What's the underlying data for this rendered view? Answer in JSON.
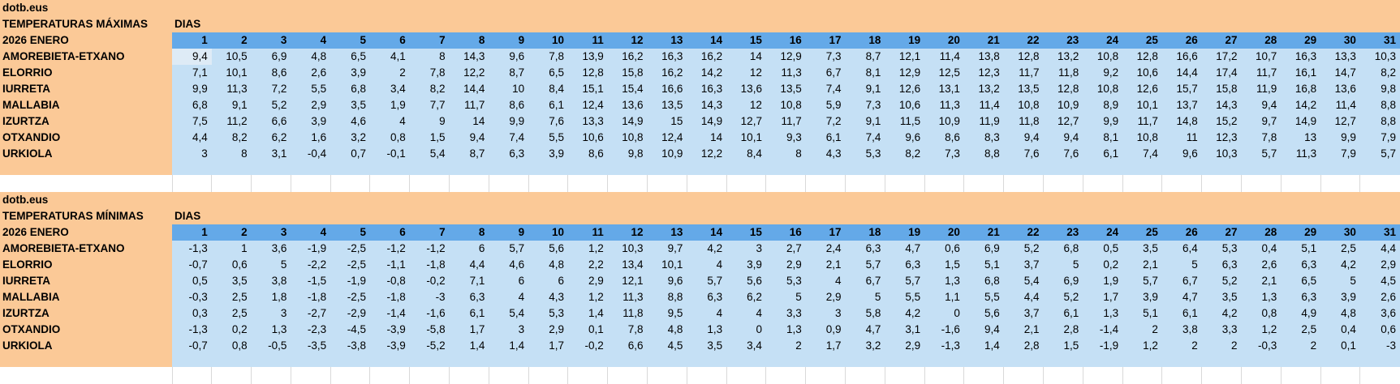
{
  "shared": {
    "site": "dotb.eus",
    "days_label": "DIAS",
    "month_label": "2026 ENERO"
  },
  "colors": {
    "peach": "#FBC997",
    "header-blue": "#64A9E8",
    "cell-blue": "#C5E0F5",
    "selected-blue": "#DEEBF6",
    "grid-gray": "#D9D9D9",
    "text": "#000000",
    "bg": "#FFFFFF"
  },
  "days": [
    "1",
    "2",
    "3",
    "4",
    "5",
    "6",
    "7",
    "8",
    "9",
    "10",
    "11",
    "12",
    "13",
    "14",
    "15",
    "16",
    "17",
    "18",
    "19",
    "20",
    "21",
    "22",
    "23",
    "24",
    "25",
    "26",
    "27",
    "28",
    "29",
    "30",
    "31"
  ],
  "selected_cell": {
    "table": 0,
    "row": 0,
    "col": 0
  },
  "tables": [
    {
      "title": "TEMPERATURAS MÁXIMAS",
      "rows": [
        {
          "station": "AMOREBIETA-ETXANO",
          "values": [
            "9,4",
            "10,5",
            "6,9",
            "4,8",
            "6,5",
            "4,1",
            "8",
            "14,3",
            "9,6",
            "7,8",
            "13,9",
            "16,2",
            "16,3",
            "16,2",
            "14",
            "12,9",
            "7,3",
            "8,7",
            "12,1",
            "11,4",
            "13,8",
            "12,8",
            "13,2",
            "10,8",
            "12,8",
            "16,6",
            "17,2",
            "10,7",
            "16,3",
            "13,3",
            "10,3"
          ]
        },
        {
          "station": "ELORRIO",
          "values": [
            "7,1",
            "10,1",
            "8,6",
            "2,6",
            "3,9",
            "2",
            "7,8",
            "12,2",
            "8,7",
            "6,5",
            "12,8",
            "15,8",
            "16,2",
            "14,2",
            "12",
            "11,3",
            "6,7",
            "8,1",
            "12,9",
            "12,5",
            "12,3",
            "11,7",
            "11,8",
            "9,2",
            "10,6",
            "14,4",
            "17,4",
            "11,7",
            "16,1",
            "14,7",
            "8,2"
          ]
        },
        {
          "station": "IURRETA",
          "values": [
            "9,9",
            "11,3",
            "7,2",
            "5,5",
            "6,8",
            "3,4",
            "8,2",
            "14,4",
            "10",
            "8,4",
            "15,1",
            "15,4",
            "16,6",
            "16,3",
            "13,6",
            "13,5",
            "7,4",
            "9,1",
            "12,6",
            "13,1",
            "13,2",
            "13,5",
            "12,8",
            "10,8",
            "12,6",
            "15,7",
            "15,8",
            "11,9",
            "16,8",
            "13,6",
            "9,8"
          ]
        },
        {
          "station": "MALLABIA",
          "values": [
            "6,8",
            "9,1",
            "5,2",
            "2,9",
            "3,5",
            "1,9",
            "7,7",
            "11,7",
            "8,6",
            "6,1",
            "12,4",
            "13,6",
            "13,5",
            "14,3",
            "12",
            "10,8",
            "5,9",
            "7,3",
            "10,6",
            "11,3",
            "11,4",
            "10,8",
            "10,9",
            "8,9",
            "10,1",
            "13,7",
            "14,3",
            "9,4",
            "14,2",
            "11,4",
            "8,8"
          ]
        },
        {
          "station": "IZURTZA",
          "values": [
            "7,5",
            "11,2",
            "6,6",
            "3,9",
            "4,6",
            "4",
            "9",
            "14",
            "9,9",
            "7,6",
            "13,3",
            "14,9",
            "15",
            "14,9",
            "12,7",
            "11,7",
            "7,2",
            "9,1",
            "11,5",
            "10,9",
            "11,9",
            "11,8",
            "12,7",
            "9,9",
            "11,7",
            "14,8",
            "15,2",
            "9,7",
            "14,9",
            "12,7",
            "8,8"
          ]
        },
        {
          "station": "OTXANDIO",
          "values": [
            "4,4",
            "8,2",
            "6,2",
            "1,6",
            "3,2",
            "0,8",
            "1,5",
            "9,4",
            "7,4",
            "5,5",
            "10,6",
            "10,8",
            "12,4",
            "14",
            "10,1",
            "9,3",
            "6,1",
            "7,4",
            "9,6",
            "8,6",
            "8,3",
            "9,4",
            "9,4",
            "8,1",
            "10,8",
            "11",
            "12,3",
            "7,8",
            "13",
            "9,9",
            "7,9"
          ]
        },
        {
          "station": "URKIOLA",
          "values": [
            "3",
            "8",
            "3,1",
            "-0,4",
            "0,7",
            "-0,1",
            "5,4",
            "8,7",
            "6,3",
            "3,9",
            "8,6",
            "9,8",
            "10,9",
            "12,2",
            "8,4",
            "8",
            "4,3",
            "5,3",
            "8,2",
            "7,3",
            "8,8",
            "7,6",
            "7,6",
            "6,1",
            "7,4",
            "9,6",
            "10,3",
            "5,7",
            "11,3",
            "7,9",
            "5,7"
          ]
        }
      ]
    },
    {
      "title": "TEMPERATURAS MÍNIMAS",
      "rows": [
        {
          "station": "AMOREBIETA-ETXANO",
          "values": [
            "-1,3",
            "1",
            "3,6",
            "-1,9",
            "-2,5",
            "-1,2",
            "-1,2",
            "6",
            "5,7",
            "5,6",
            "1,2",
            "10,3",
            "9,7",
            "4,2",
            "3",
            "2,7",
            "2,4",
            "6,3",
            "4,7",
            "0,6",
            "6,9",
            "5,2",
            "6,8",
            "0,5",
            "3,5",
            "6,4",
            "5,3",
            "0,4",
            "5,1",
            "2,5",
            "4,4"
          ]
        },
        {
          "station": "ELORRIO",
          "values": [
            "-0,7",
            "0,6",
            "5",
            "-2,2",
            "-2,5",
            "-1,1",
            "-1,8",
            "4,4",
            "4,6",
            "4,8",
            "2,2",
            "13,4",
            "10,1",
            "4",
            "3,9",
            "2,9",
            "2,1",
            "5,7",
            "6,3",
            "1,5",
            "5,1",
            "3,7",
            "5",
            "0,2",
            "2,1",
            "5",
            "6,3",
            "2,6",
            "6,3",
            "4,2",
            "2,9"
          ]
        },
        {
          "station": "IURRETA",
          "values": [
            "0,5",
            "3,5",
            "3,8",
            "-1,5",
            "-1,9",
            "-0,8",
            "-0,2",
            "7,1",
            "6",
            "6",
            "2,9",
            "12,1",
            "9,6",
            "5,7",
            "5,6",
            "5,3",
            "4",
            "6,7",
            "5,7",
            "1,3",
            "6,8",
            "5,4",
            "6,9",
            "1,9",
            "5,7",
            "6,7",
            "5,2",
            "2,1",
            "6,5",
            "5",
            "4,5"
          ]
        },
        {
          "station": "MALLABIA",
          "values": [
            "-0,3",
            "2,5",
            "1,8",
            "-1,8",
            "-2,5",
            "-1,8",
            "-3",
            "6,3",
            "4",
            "4,3",
            "1,2",
            "11,3",
            "8,8",
            "6,3",
            "6,2",
            "5",
            "2,9",
            "5",
            "5,5",
            "1,1",
            "5,5",
            "4,4",
            "5,2",
            "1,7",
            "3,9",
            "4,7",
            "3,5",
            "1,3",
            "6,3",
            "3,9",
            "2,6"
          ]
        },
        {
          "station": "IZURTZA",
          "values": [
            "0,3",
            "2,5",
            "3",
            "-2,7",
            "-2,9",
            "-1,4",
            "-1,6",
            "6,1",
            "5,4",
            "5,3",
            "1,4",
            "11,8",
            "9,5",
            "4",
            "4",
            "3,3",
            "3",
            "5,8",
            "4,2",
            "0",
            "5,6",
            "3,7",
            "6,1",
            "1,3",
            "5,1",
            "6,1",
            "4,2",
            "0,8",
            "4,9",
            "4,8",
            "3,6"
          ]
        },
        {
          "station": "OTXANDIO",
          "values": [
            "-1,3",
            "0,2",
            "1,3",
            "-2,3",
            "-4,5",
            "-3,9",
            "-5,8",
            "1,7",
            "3",
            "2,9",
            "0,1",
            "7,8",
            "4,8",
            "1,3",
            "0",
            "1,3",
            "0,9",
            "4,7",
            "3,1",
            "-1,6",
            "9,4",
            "2,1",
            "2,8",
            "-1,4",
            "2",
            "3,8",
            "3,3",
            "1,2",
            "2,5",
            "0,4",
            "0,6"
          ]
        },
        {
          "station": "URKIOLA",
          "values": [
            "-0,7",
            "0,8",
            "-0,5",
            "-3,5",
            "-3,8",
            "-3,9",
            "-5,2",
            "1,4",
            "1,4",
            "1,7",
            "-0,2",
            "6,6",
            "4,5",
            "3,5",
            "3,4",
            "2",
            "1,7",
            "3,2",
            "2,9",
            "-1,3",
            "1,4",
            "2,8",
            "1,5",
            "-1,9",
            "1,2",
            "2",
            "2",
            "-0,3",
            "2",
            "0,1",
            "-3"
          ]
        }
      ]
    }
  ]
}
